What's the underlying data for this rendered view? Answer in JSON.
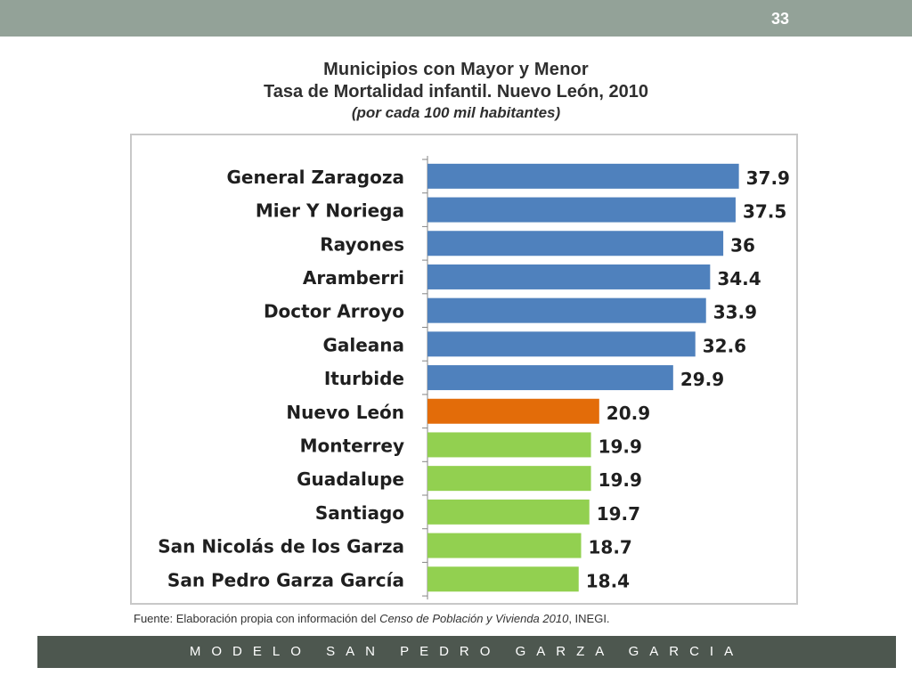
{
  "slide": {
    "number": "33"
  },
  "title": {
    "line1": "Municipios con Mayor y Menor",
    "line2": "Tasa de Mortalidad infantil. Nuevo León, 2010",
    "line3": "(por cada 100 mil habitantes)"
  },
  "source": {
    "prefix": "Fuente: Elaboración propia con información del ",
    "italic": "Censo de Población y Vivienda  2010",
    "suffix": ", INEGI."
  },
  "footer": {
    "text": "MODELO SAN PEDRO GARZA GARCIA"
  },
  "colors": {
    "high": "#4f81bd",
    "state": "#e36c09",
    "low": "#92d050"
  },
  "chart_data": {
    "type": "bar",
    "orientation": "horizontal",
    "title": "",
    "xlabel": "",
    "ylabel": "",
    "xlim": [
      0,
      40
    ],
    "grid": false,
    "legend": "none",
    "categories": [
      "General Zaragoza",
      "Mier Y Noriega",
      "Rayones",
      "Aramberri",
      "Doctor Arroyo",
      "Galeana",
      "Iturbide",
      "Nuevo León",
      "Monterrey",
      "Guadalupe",
      "Santiago",
      "San Nicolás de los Garza",
      "San Pedro Garza García"
    ],
    "values": [
      37.9,
      37.5,
      36,
      34.4,
      33.9,
      32.6,
      29.9,
      20.9,
      19.9,
      19.9,
      19.7,
      18.7,
      18.4
    ],
    "data_labels": [
      "37.9",
      "37.5",
      "36",
      "34.4",
      "33.9",
      "32.6",
      "29.9",
      "20.9",
      "19.9",
      "19.9",
      "19.7",
      "18.7",
      "18.4"
    ],
    "bar_colors": [
      "high",
      "high",
      "high",
      "high",
      "high",
      "high",
      "high",
      "state",
      "low",
      "low",
      "low",
      "low",
      "low"
    ]
  }
}
